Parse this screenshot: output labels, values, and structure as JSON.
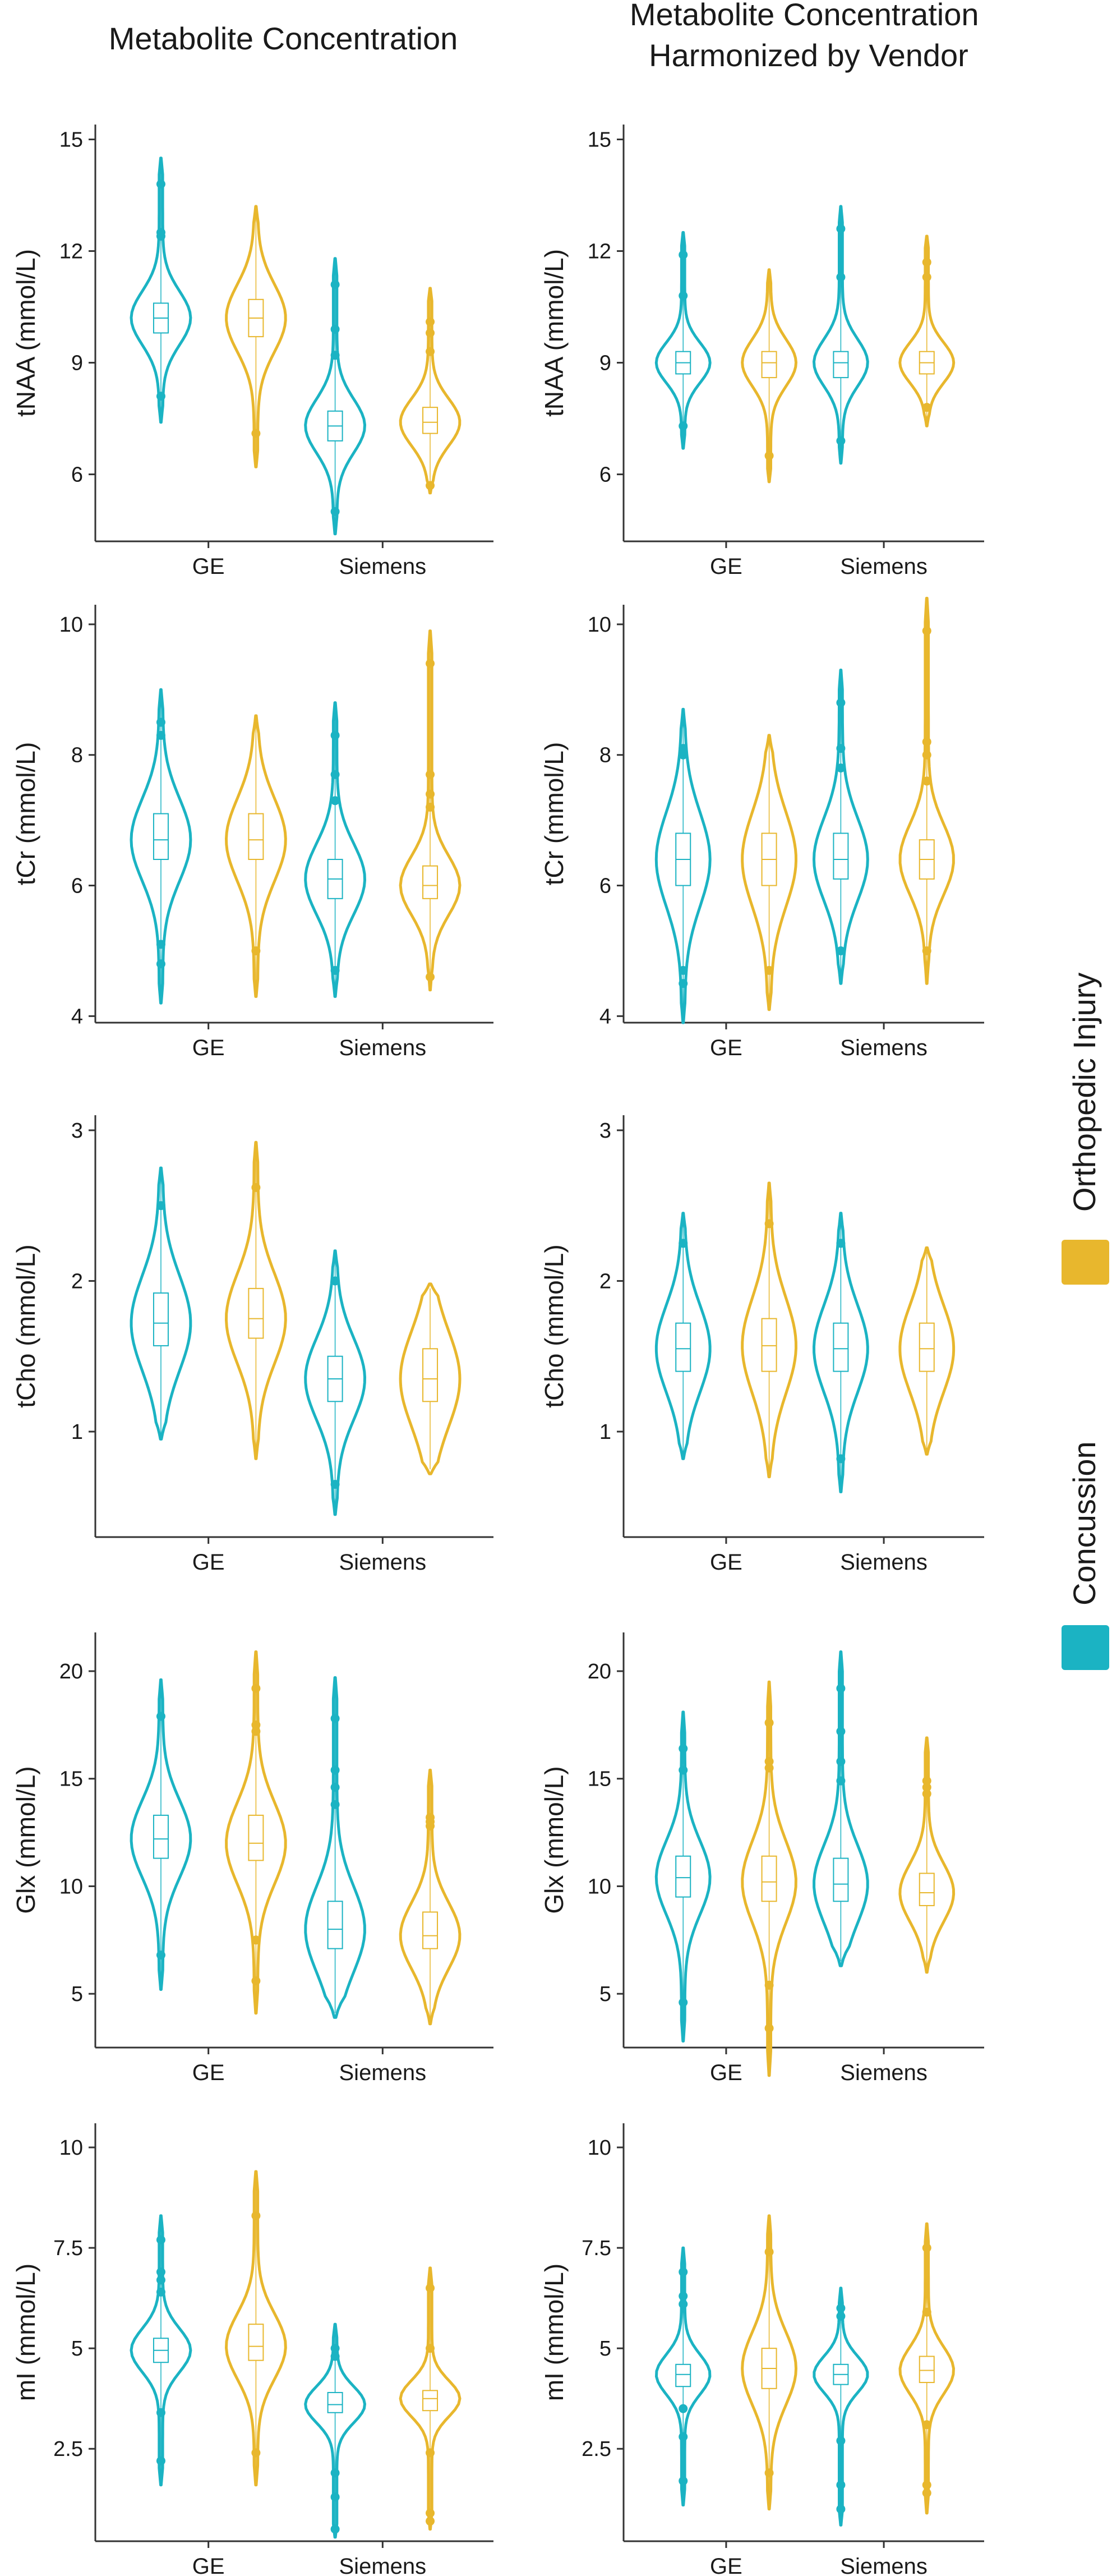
{
  "colors": {
    "Concussion": "#1bb3c3",
    "Orthopedic Injury": "#e8b72d"
  },
  "legend": {
    "items": [
      "Orthopedic Injury",
      "Concussion"
    ]
  },
  "chart_data": [
    {
      "type": "violin",
      "column_title": "Metabolite Concentration",
      "metabolite": "tNAA",
      "ylabel": "tNAA (mmol/L)",
      "yticks": [
        6,
        9,
        12,
        15
      ],
      "ylim": [
        4.2,
        15.4
      ],
      "categories": [
        "GE",
        "Siemens"
      ],
      "series": [
        {
          "name": "Concussion",
          "groups": [
            {
              "median": 10.2,
              "q1": 9.8,
              "q3": 10.6,
              "min": 7.4,
              "max": 14.5,
              "outliers": [
                8.1,
                12.4,
                12.5,
                13.8
              ]
            },
            {
              "median": 7.3,
              "q1": 6.9,
              "q3": 7.7,
              "min": 4.4,
              "max": 11.8,
              "outliers": [
                5.0,
                9.2,
                9.9,
                11.1
              ]
            }
          ]
        },
        {
          "name": "Orthopedic Injury",
          "groups": [
            {
              "median": 10.2,
              "q1": 9.7,
              "q3": 10.7,
              "min": 6.2,
              "max": 13.2,
              "outliers": [
                7.1
              ]
            },
            {
              "median": 7.4,
              "q1": 7.1,
              "q3": 7.8,
              "min": 5.5,
              "max": 11.0,
              "outliers": [
                5.7,
                9.3,
                9.8,
                10.1
              ]
            }
          ]
        }
      ]
    },
    {
      "type": "violin",
      "column_title": "Metabolite Concentration Harmonized by Vendor",
      "metabolite": "tNAA",
      "ylabel": "tNAA (mmol/L)",
      "yticks": [
        6,
        9,
        12,
        15
      ],
      "ylim": [
        4.2,
        15.4
      ],
      "categories": [
        "GE",
        "Siemens"
      ],
      "series": [
        {
          "name": "Concussion",
          "groups": [
            {
              "median": 9.0,
              "q1": 8.7,
              "q3": 9.3,
              "min": 6.7,
              "max": 12.5,
              "outliers": [
                7.3,
                10.8,
                11.9
              ]
            },
            {
              "median": 9.0,
              "q1": 8.6,
              "q3": 9.3,
              "min": 6.3,
              "max": 13.2,
              "outliers": [
                6.9,
                11.3,
                12.6
              ]
            }
          ]
        },
        {
          "name": "Orthopedic Injury",
          "groups": [
            {
              "median": 9.0,
              "q1": 8.6,
              "q3": 9.3,
              "min": 5.8,
              "max": 11.5,
              "outliers": [
                6.5
              ]
            },
            {
              "median": 9.0,
              "q1": 8.7,
              "q3": 9.3,
              "min": 7.3,
              "max": 12.4,
              "outliers": [
                7.8,
                11.3,
                11.7
              ]
            }
          ]
        }
      ]
    },
    {
      "type": "violin",
      "metabolite": "tCr",
      "ylabel": "tCr (mmol/L)",
      "yticks": [
        4,
        6,
        8,
        10
      ],
      "ylim": [
        3.9,
        10.3
      ],
      "categories": [
        "GE",
        "Siemens"
      ],
      "series": [
        {
          "name": "Concussion",
          "groups": [
            {
              "median": 6.7,
              "q1": 6.4,
              "q3": 7.1,
              "min": 4.2,
              "max": 9.0,
              "outliers": [
                4.8,
                5.1,
                8.3,
                8.5
              ]
            },
            {
              "median": 6.1,
              "q1": 5.8,
              "q3": 6.4,
              "min": 4.3,
              "max": 8.8,
              "outliers": [
                4.7,
                7.3,
                7.7,
                8.3
              ]
            }
          ]
        },
        {
          "name": "Orthopedic Injury",
          "groups": [
            {
              "median": 6.7,
              "q1": 6.4,
              "q3": 7.1,
              "min": 4.3,
              "max": 8.6,
              "outliers": [
                5.0
              ]
            },
            {
              "median": 6.0,
              "q1": 5.8,
              "q3": 6.3,
              "min": 4.4,
              "max": 9.9,
              "outliers": [
                4.6,
                7.2,
                7.4,
                7.7,
                9.4
              ]
            }
          ]
        }
      ]
    },
    {
      "type": "violin",
      "metabolite": "tCr",
      "ylabel": "tCr (mmol/L)",
      "yticks": [
        4,
        6,
        8,
        10
      ],
      "ylim": [
        3.9,
        10.3
      ],
      "categories": [
        "GE",
        "Siemens"
      ],
      "series": [
        {
          "name": "Concussion",
          "groups": [
            {
              "median": 6.4,
              "q1": 6.0,
              "q3": 6.8,
              "min": 3.9,
              "max": 8.7,
              "outliers": [
                4.5,
                4.7,
                8.0,
                8.1
              ]
            },
            {
              "median": 6.4,
              "q1": 6.1,
              "q3": 6.8,
              "min": 4.5,
              "max": 9.3,
              "outliers": [
                5.0,
                7.8,
                8.1,
                8.8
              ]
            }
          ]
        },
        {
          "name": "Orthopedic Injury",
          "groups": [
            {
              "median": 6.4,
              "q1": 6.0,
              "q3": 6.8,
              "min": 4.1,
              "max": 8.3,
              "outliers": [
                4.7
              ]
            },
            {
              "median": 6.4,
              "q1": 6.1,
              "q3": 6.7,
              "min": 4.5,
              "max": 10.4,
              "outliers": [
                5.0,
                7.6,
                8.0,
                8.2,
                9.9
              ]
            }
          ]
        }
      ]
    },
    {
      "type": "violin",
      "metabolite": "tCho",
      "ylabel": "tCho (mmol/L)",
      "yticks": [
        1,
        2,
        3
      ],
      "ylim": [
        0.3,
        3.1
      ],
      "categories": [
        "GE",
        "Siemens"
      ],
      "series": [
        {
          "name": "Concussion",
          "groups": [
            {
              "median": 1.72,
              "q1": 1.57,
              "q3": 1.92,
              "min": 0.95,
              "max": 2.75,
              "outliers": [
                2.5
              ]
            },
            {
              "median": 1.35,
              "q1": 1.2,
              "q3": 1.5,
              "min": 0.45,
              "max": 2.2,
              "outliers": [
                0.65,
                2.0
              ]
            }
          ]
        },
        {
          "name": "Orthopedic Injury",
          "groups": [
            {
              "median": 1.75,
              "q1": 1.62,
              "q3": 1.95,
              "min": 0.82,
              "max": 2.92,
              "outliers": [
                2.62
              ]
            },
            {
              "median": 1.35,
              "q1": 1.2,
              "q3": 1.55,
              "min": 0.72,
              "max": 1.98,
              "outliers": []
            }
          ]
        }
      ]
    },
    {
      "type": "violin",
      "metabolite": "tCho",
      "ylabel": "tCho (mmol/L)",
      "yticks": [
        1,
        2,
        3
      ],
      "ylim": [
        0.3,
        3.1
      ],
      "categories": [
        "GE",
        "Siemens"
      ],
      "series": [
        {
          "name": "Concussion",
          "groups": [
            {
              "median": 1.55,
              "q1": 1.4,
              "q3": 1.72,
              "min": 0.82,
              "max": 2.45,
              "outliers": [
                2.25
              ]
            },
            {
              "median": 1.55,
              "q1": 1.4,
              "q3": 1.72,
              "min": 0.6,
              "max": 2.45,
              "outliers": [
                0.82,
                2.25
              ]
            }
          ]
        },
        {
          "name": "Orthopedic Injury",
          "groups": [
            {
              "median": 1.57,
              "q1": 1.4,
              "q3": 1.75,
              "min": 0.7,
              "max": 2.65,
              "outliers": [
                2.38
              ]
            },
            {
              "median": 1.55,
              "q1": 1.4,
              "q3": 1.72,
              "min": 0.85,
              "max": 2.22,
              "outliers": []
            }
          ]
        }
      ]
    },
    {
      "type": "violin",
      "metabolite": "Glx",
      "ylabel": "Glx (mmol/L)",
      "yticks": [
        5,
        10,
        15,
        20
      ],
      "ylim": [
        2.5,
        21.8
      ],
      "categories": [
        "GE",
        "Siemens"
      ],
      "series": [
        {
          "name": "Concussion",
          "groups": [
            {
              "median": 12.2,
              "q1": 11.3,
              "q3": 13.3,
              "min": 5.2,
              "max": 19.6,
              "outliers": [
                6.8,
                17.9
              ]
            },
            {
              "median": 8.0,
              "q1": 7.1,
              "q3": 9.3,
              "min": 3.9,
              "max": 19.7,
              "outliers": [
                13.8,
                14.6,
                15.4,
                17.8
              ]
            }
          ]
        },
        {
          "name": "Orthopedic Injury",
          "groups": [
            {
              "median": 12.0,
              "q1": 11.2,
              "q3": 13.3,
              "min": 4.1,
              "max": 20.9,
              "outliers": [
                5.6,
                7.5,
                17.2,
                17.5,
                19.2
              ]
            },
            {
              "median": 7.7,
              "q1": 7.1,
              "q3": 8.8,
              "min": 3.6,
              "max": 15.4,
              "outliers": [
                12.8,
                13.0,
                13.2
              ]
            }
          ]
        }
      ]
    },
    {
      "type": "violin",
      "metabolite": "Glx",
      "ylabel": "Glx (mmol/L)",
      "yticks": [
        5,
        10,
        15,
        20
      ],
      "ylim": [
        2.5,
        21.8
      ],
      "categories": [
        "GE",
        "Siemens"
      ],
      "series": [
        {
          "name": "Concussion",
          "groups": [
            {
              "median": 10.4,
              "q1": 9.5,
              "q3": 11.4,
              "min": 2.8,
              "max": 18.1,
              "outliers": [
                4.6,
                15.4,
                16.4
              ]
            },
            {
              "median": 10.1,
              "q1": 9.3,
              "q3": 11.3,
              "min": 6.3,
              "max": 20.9,
              "outliers": [
                14.9,
                15.8,
                17.2,
                19.2
              ]
            }
          ]
        },
        {
          "name": "Orthopedic Injury",
          "groups": [
            {
              "median": 10.2,
              "q1": 9.3,
              "q3": 11.4,
              "min": 1.2,
              "max": 19.5,
              "outliers": [
                3.4,
                5.4,
                15.5,
                15.8,
                17.6
              ]
            },
            {
              "median": 9.7,
              "q1": 9.1,
              "q3": 10.6,
              "min": 6.0,
              "max": 16.9,
              "outliers": [
                14.3,
                14.6,
                14.9
              ]
            }
          ]
        }
      ]
    },
    {
      "type": "violin",
      "metabolite": "mI",
      "ylabel": "mI (mmol/L)",
      "yticks": [
        2.5,
        5.0,
        7.5,
        10
      ],
      "ylim": [
        0.2,
        10.6
      ],
      "categories": [
        "GE",
        "Siemens"
      ],
      "series": [
        {
          "name": "Concussion",
          "groups": [
            {
              "median": 4.95,
              "q1": 4.65,
              "q3": 5.25,
              "min": 1.6,
              "max": 8.3,
              "outliers": [
                2.2,
                3.4,
                6.4,
                6.7,
                6.9,
                7.7
              ]
            },
            {
              "median": 3.6,
              "q1": 3.4,
              "q3": 3.9,
              "min": 0.3,
              "max": 5.6,
              "outliers": [
                0.5,
                1.3,
                1.9,
                4.8,
                5.0
              ]
            }
          ]
        },
        {
          "name": "Orthopedic Injury",
          "groups": [
            {
              "median": 5.05,
              "q1": 4.7,
              "q3": 5.6,
              "min": 1.6,
              "max": 9.4,
              "outliers": [
                2.4,
                8.3
              ]
            },
            {
              "median": 3.75,
              "q1": 3.45,
              "q3": 3.95,
              "min": 0.5,
              "max": 7.0,
              "outliers": [
                0.7,
                0.9,
                2.4,
                5.0,
                6.5
              ]
            }
          ]
        }
      ]
    },
    {
      "type": "violin",
      "metabolite": "mI",
      "ylabel": "mI (mmol/L)",
      "yticks": [
        2.5,
        5.0,
        7.5,
        10
      ],
      "ylim": [
        0.2,
        10.6
      ],
      "categories": [
        "GE",
        "Siemens"
      ],
      "series": [
        {
          "name": "Concussion",
          "groups": [
            {
              "median": 4.35,
              "q1": 4.05,
              "q3": 4.6,
              "min": 1.1,
              "max": 7.5,
              "outliers": [
                1.7,
                2.8,
                3.5,
                6.1,
                6.3,
                6.9
              ]
            },
            {
              "median": 4.35,
              "q1": 4.1,
              "q3": 4.6,
              "min": 0.6,
              "max": 6.5,
              "outliers": [
                1.0,
                1.6,
                2.7,
                5.8,
                6.0
              ]
            }
          ]
        },
        {
          "name": "Orthopedic Injury",
          "groups": [
            {
              "median": 4.5,
              "q1": 4.0,
              "q3": 5.0,
              "min": 1.0,
              "max": 8.3,
              "outliers": [
                1.9,
                7.4
              ]
            },
            {
              "median": 4.45,
              "q1": 4.15,
              "q3": 4.8,
              "min": 0.9,
              "max": 8.1,
              "outliers": [
                1.4,
                1.6,
                3.1,
                5.9,
                7.5
              ]
            }
          ]
        }
      ]
    }
  ]
}
